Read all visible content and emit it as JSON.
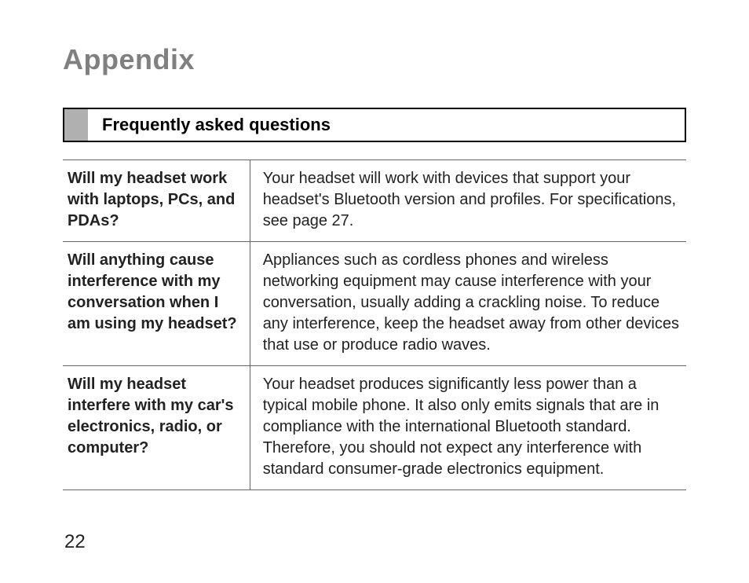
{
  "title": "Appendix",
  "section_title": "Frequently asked questions",
  "page_number": "22",
  "faq_table": {
    "type": "table",
    "columns": [
      "question",
      "answer"
    ],
    "col_widths_pct": [
      30,
      70
    ],
    "border_color": "#666666",
    "header_border_color": "#000000",
    "header_tab_color": "#b0b0b0",
    "text_color": "#222222",
    "question_fontweight": "bold",
    "fontsize_pt": 15,
    "line_height": 1.35,
    "rows": [
      {
        "q": "Will my headset work with laptops, PCs, and PDAs?",
        "a": "Your headset will work with devices that support your headset's Bluetooth version and profiles. For specifications, see page 27."
      },
      {
        "q": "Will anything cause interference with my conversation when I am using my headset?",
        "a": "Appliances such as cordless phones and wireless networking equipment may cause interference with your conversation, usually adding a crackling noise. To reduce any interference, keep the headset away from other devices that use or produce radio waves."
      },
      {
        "q": "Will my headset interfere with my car's electronics, radio, or computer?",
        "a": "Your headset produces significantly less power than a typical mobile phone. It also only emits signals that are in compliance with the international Bluetooth standard. Therefore, you should not expect any interference with standard consumer-grade electronics equipment."
      }
    ]
  },
  "styles": {
    "title_color": "#808080",
    "title_fontsize_pt": 27,
    "background_color": "#ffffff",
    "font_family": "Arial"
  }
}
